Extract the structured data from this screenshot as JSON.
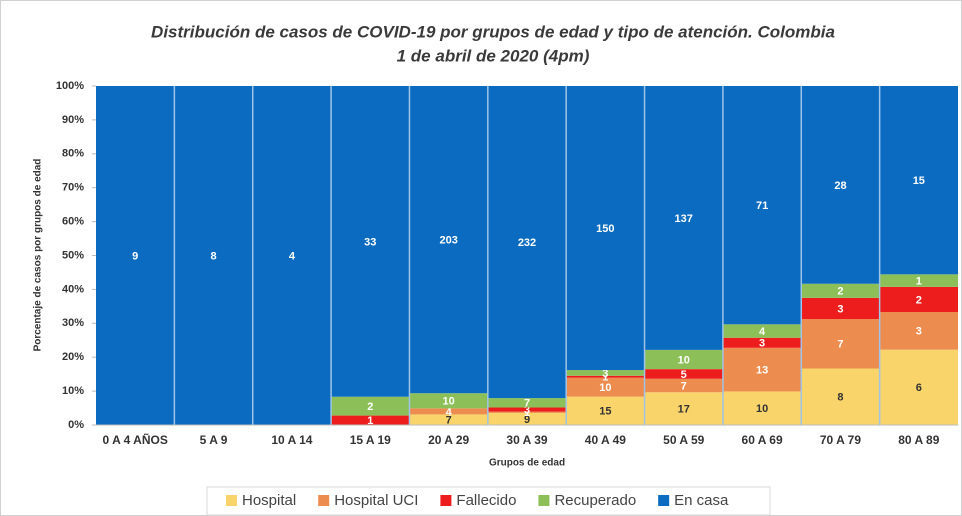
{
  "chart_data": {
    "type": "bar",
    "stack": "percent",
    "title": "Distribución de casos de COVID-19 por grupos de edad y tipo de atención. Colombia",
    "subtitle": "1 de abril de 2020 (4pm)",
    "x_label": "Grupos de edad",
    "y_label": "Porcentaje de casos por grupos de edad",
    "categories": [
      "0 A 4 AÑOS",
      "5 A 9",
      "10 A 14",
      "15 A 19",
      "20 A 29",
      "30 A 39",
      "40 A 49",
      "50 A 59",
      "60 A 69",
      "70 A 79",
      "80 A 89"
    ],
    "series": [
      {
        "name": "Hospital",
        "color": "#f8d46a",
        "values": [
          0,
          0,
          0,
          0,
          7,
          9,
          15,
          17,
          10,
          8,
          6
        ]
      },
      {
        "name": "Hospital UCI",
        "color": "#ec8c4f",
        "values": [
          0,
          0,
          0,
          0,
          4,
          1,
          10,
          7,
          13,
          7,
          3
        ]
      },
      {
        "name": "Fallecido",
        "color": "#ee1d1d",
        "values": [
          0,
          0,
          0,
          1,
          0,
          3,
          1,
          5,
          3,
          3,
          2
        ]
      },
      {
        "name": "Recuperado",
        "color": "#8cbf58",
        "values": [
          0,
          0,
          0,
          2,
          10,
          7,
          3,
          10,
          4,
          2,
          1
        ]
      },
      {
        "name": "En casa",
        "color": "#0b6bc1",
        "values": [
          9,
          8,
          4,
          33,
          203,
          232,
          150,
          137,
          71,
          28,
          15
        ]
      }
    ],
    "ylim": [
      0,
      100
    ],
    "yticks": [
      {
        "value": 0,
        "label": "0%"
      },
      {
        "value": 10,
        "label": "10%"
      },
      {
        "value": 20,
        "label": "20%"
      },
      {
        "value": 30,
        "label": "30%"
      },
      {
        "value": 40,
        "label": "40%"
      },
      {
        "value": 50,
        "label": "50%"
      },
      {
        "value": 60,
        "label": "60%"
      },
      {
        "value": 70,
        "label": "70%"
      },
      {
        "value": 80,
        "label": "80%"
      },
      {
        "value": 90,
        "label": "90%"
      },
      {
        "value": 100,
        "label": "100%"
      }
    ],
    "legend": "bottom"
  }
}
